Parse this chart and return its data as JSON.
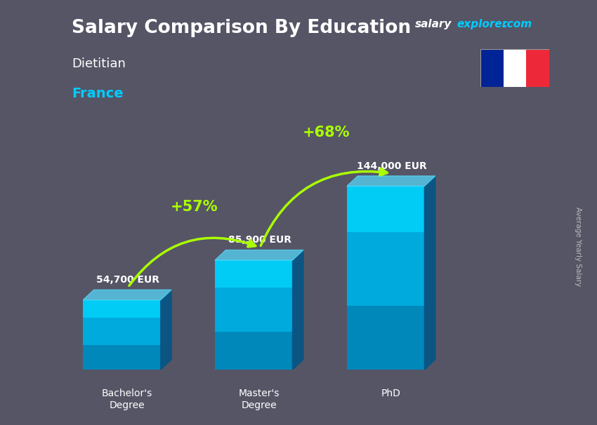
{
  "title_main": "Salary Comparison By Education",
  "subtitle1": "Dietitian",
  "subtitle2": "France",
  "ylabel_text": "Average Yearly Salary",
  "categories": [
    "Bachelor's\nDegree",
    "Master's\nDegree",
    "PhD"
  ],
  "values": [
    54700,
    85900,
    144000
  ],
  "value_labels": [
    "54,700 EUR",
    "85,900 EUR",
    "144,000 EUR"
  ],
  "pct_labels": [
    "+57%",
    "+68%"
  ],
  "pct_color": "#aaff00",
  "title_color": "#ffffff",
  "subtitle1_color": "#ffffff",
  "subtitle2_color": "#00ccff",
  "bar_face_color": "#00c8f0",
  "bar_right_color": "#0077aa",
  "bar_top_color": "#00eeff",
  "bg_color": "#555566",
  "flag_blue": "#002395",
  "flag_white": "#ffffff",
  "flag_red": "#ED2939"
}
